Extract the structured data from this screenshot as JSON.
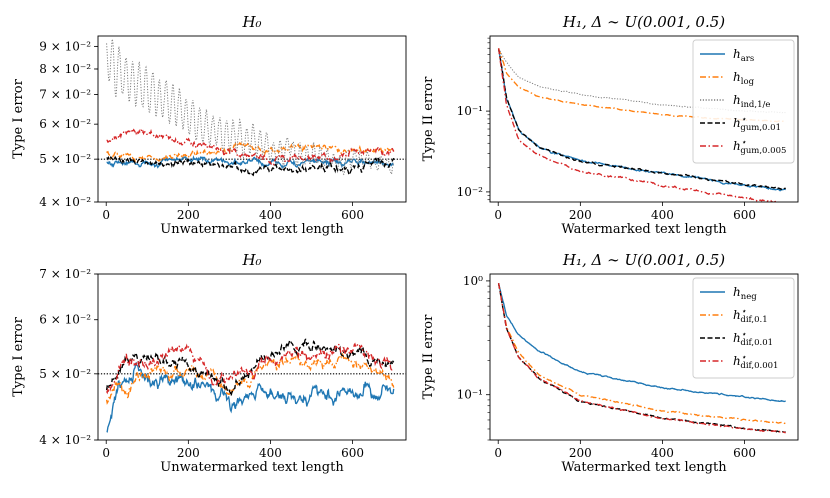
{
  "figure": {
    "panels": 4,
    "layout": "2x2"
  },
  "colors": {
    "blue": "#1f77b4",
    "orange": "#ff7f0e",
    "gray": "#7f7f7f",
    "black": "#000000",
    "red": "#d62728",
    "reference": "#000000"
  },
  "chart_data": [
    {
      "id": "top-left",
      "type": "line",
      "title": "H₀",
      "xlabel": "Unwatermarked text length",
      "ylabel": "Type I error",
      "yscale": "log",
      "xlim": [
        -20,
        730
      ],
      "ylim": [
        0.04,
        0.095
      ],
      "xticks": [
        {
          "v": 0,
          "label": "0"
        },
        {
          "v": 200,
          "label": "200"
        },
        {
          "v": 400,
          "label": "400"
        },
        {
          "v": 600,
          "label": "600"
        }
      ],
      "yticks": [
        {
          "v": 0.04,
          "label": "4 × 10⁻²"
        },
        {
          "v": 0.05,
          "label": "5 × 10⁻²"
        },
        {
          "v": 0.06,
          "label": "6 × 10⁻²"
        },
        {
          "v": 0.07,
          "label": "7 × 10⁻²"
        },
        {
          "v": 0.08,
          "label": "8 × 10⁻²"
        },
        {
          "v": 0.09,
          "label": "9 × 10⁻²"
        }
      ],
      "reference_line": {
        "y": 0.05,
        "style": "dotted"
      },
      "series": [
        {
          "name": "h_ars",
          "color": "blue",
          "dash": "solid",
          "noise": 0.012,
          "mean": [
            [
              0,
              0.049
            ],
            [
              80,
              0.049
            ],
            [
              200,
              0.05
            ],
            [
              400,
              0.049
            ],
            [
              700,
              0.049
            ]
          ]
        },
        {
          "name": "h_log",
          "color": "orange",
          "dash": "dashdot",
          "noise": 0.012,
          "mean": [
            [
              0,
              0.052
            ],
            [
              100,
              0.05
            ],
            [
              300,
              0.053
            ],
            [
              500,
              0.053
            ],
            [
              700,
              0.052
            ]
          ]
        },
        {
          "name": "h_ind,1/e",
          "color": "gray",
          "dash": "dotted",
          "noise": 0.02,
          "osc": 0.12,
          "mean": [
            [
              0,
              0.085
            ],
            [
              100,
              0.07
            ],
            [
              250,
              0.059
            ],
            [
              400,
              0.053
            ],
            [
              600,
              0.05
            ],
            [
              700,
              0.049
            ]
          ]
        },
        {
          "name": "h*_gum,0.01",
          "color": "black",
          "dash": "dashed",
          "noise": 0.014,
          "mean": [
            [
              0,
              0.05
            ],
            [
              200,
              0.049
            ],
            [
              400,
              0.047
            ],
            [
              700,
              0.049
            ]
          ]
        },
        {
          "name": "h*_gum,0.005",
          "color": "red",
          "dash": "dashdot",
          "noise": 0.014,
          "mean": [
            [
              0,
              0.055
            ],
            [
              50,
              0.058
            ],
            [
              200,
              0.054
            ],
            [
              400,
              0.05
            ],
            [
              700,
              0.052
            ]
          ]
        }
      ]
    },
    {
      "id": "top-right",
      "type": "line",
      "title": "H₁, Δ ∼ U(0.001, 0.5)",
      "xlabel": "Watermarked text length",
      "ylabel": "Type II error",
      "yscale": "log",
      "xlim": [
        -20,
        730
      ],
      "ylim": [
        0.0075,
        0.85
      ],
      "xticks": [
        {
          "v": 0,
          "label": "0"
        },
        {
          "v": 200,
          "label": "200"
        },
        {
          "v": 400,
          "label": "400"
        },
        {
          "v": 600,
          "label": "600"
        }
      ],
      "yticks": [
        {
          "v": 0.01,
          "label": "10⁻²"
        },
        {
          "v": 0.1,
          "label": "10⁻¹"
        }
      ],
      "legend": {
        "position": "upper-right",
        "entries": [
          "h_ars",
          "h_log",
          "h_ind,1/e",
          "h*_gum,0.01",
          "h*_gum,0.005"
        ]
      },
      "series": [
        {
          "name": "h_ars",
          "color": "blue",
          "dash": "solid",
          "noise": 0.02,
          "mean": [
            [
              1,
              0.6
            ],
            [
              20,
              0.15
            ],
            [
              50,
              0.06
            ],
            [
              100,
              0.035
            ],
            [
              200,
              0.024
            ],
            [
              400,
              0.017
            ],
            [
              600,
              0.012
            ],
            [
              700,
              0.0105
            ]
          ]
        },
        {
          "name": "h_log",
          "color": "orange",
          "dash": "dashdot",
          "noise": 0.01,
          "mean": [
            [
              1,
              0.6
            ],
            [
              20,
              0.3
            ],
            [
              50,
              0.2
            ],
            [
              100,
              0.15
            ],
            [
              200,
              0.12
            ],
            [
              400,
              0.09
            ],
            [
              600,
              0.078
            ],
            [
              700,
              0.074
            ]
          ]
        },
        {
          "name": "h_ind,1/e",
          "color": "gray",
          "dash": "dotted",
          "noise": 0.01,
          "mean": [
            [
              1,
              0.6
            ],
            [
              20,
              0.4
            ],
            [
              50,
              0.26
            ],
            [
              100,
              0.2
            ],
            [
              200,
              0.16
            ],
            [
              400,
              0.12
            ],
            [
              600,
              0.1
            ],
            [
              700,
              0.095
            ]
          ]
        },
        {
          "name": "h*_gum,0.01",
          "color": "black",
          "dash": "dashed",
          "noise": 0.02,
          "mean": [
            [
              1,
              0.6
            ],
            [
              20,
              0.15
            ],
            [
              50,
              0.06
            ],
            [
              100,
              0.035
            ],
            [
              200,
              0.024
            ],
            [
              400,
              0.017
            ],
            [
              600,
              0.0125
            ],
            [
              700,
              0.0108
            ]
          ]
        },
        {
          "name": "h*_gum,0.005",
          "color": "red",
          "dash": "dashdot",
          "noise": 0.02,
          "mean": [
            [
              1,
              0.6
            ],
            [
              20,
              0.12
            ],
            [
              50,
              0.045
            ],
            [
              100,
              0.028
            ],
            [
              200,
              0.018
            ],
            [
              400,
              0.012
            ],
            [
              600,
              0.0085
            ],
            [
              700,
              0.0072
            ]
          ]
        }
      ]
    },
    {
      "id": "bottom-left",
      "type": "line",
      "title": "H₀",
      "xlabel": "Unwatermarked text length",
      "ylabel": "Type I error",
      "yscale": "log",
      "xlim": [
        -20,
        730
      ],
      "ylim": [
        0.04,
        0.07
      ],
      "xticks": [
        {
          "v": 0,
          "label": "0"
        },
        {
          "v": 200,
          "label": "200"
        },
        {
          "v": 400,
          "label": "400"
        },
        {
          "v": 600,
          "label": "600"
        }
      ],
      "yticks": [
        {
          "v": 0.04,
          "label": "4 × 10⁻²"
        },
        {
          "v": 0.05,
          "label": "5 × 10⁻²"
        },
        {
          "v": 0.06,
          "label": "6 × 10⁻²"
        },
        {
          "v": 0.07,
          "label": "7 × 10⁻²"
        }
      ],
      "reference_line": {
        "y": 0.05,
        "style": "dotted"
      },
      "series": [
        {
          "name": "h_neg",
          "color": "blue",
          "dash": "solid",
          "noise": 0.018,
          "mean": [
            [
              0,
              0.041
            ],
            [
              30,
              0.048
            ],
            [
              80,
              0.05
            ],
            [
              200,
              0.049
            ],
            [
              300,
              0.046
            ],
            [
              400,
              0.047
            ],
            [
              500,
              0.046
            ],
            [
              600,
              0.047
            ],
            [
              700,
              0.048
            ]
          ]
        },
        {
          "name": "h*_dif,0.1",
          "color": "orange",
          "dash": "dashdot",
          "noise": 0.016,
          "mean": [
            [
              0,
              0.046
            ],
            [
              100,
              0.05
            ],
            [
              200,
              0.051
            ],
            [
              300,
              0.047
            ],
            [
              400,
              0.052
            ],
            [
              500,
              0.052
            ],
            [
              600,
              0.052
            ],
            [
              700,
              0.049
            ]
          ]
        },
        {
          "name": "h*_dif,0.01",
          "color": "black",
          "dash": "dashed",
          "noise": 0.014,
          "mean": [
            [
              0,
              0.047
            ],
            [
              50,
              0.053
            ],
            [
              200,
              0.052
            ],
            [
              300,
              0.048
            ],
            [
              400,
              0.054
            ],
            [
              500,
              0.055
            ],
            [
              600,
              0.054
            ],
            [
              700,
              0.051
            ]
          ]
        },
        {
          "name": "h*_dif,0.001",
          "color": "red",
          "dash": "dashdot",
          "noise": 0.016,
          "mean": [
            [
              0,
              0.047
            ],
            [
              50,
              0.052
            ],
            [
              200,
              0.054
            ],
            [
              300,
              0.048
            ],
            [
              400,
              0.052
            ],
            [
              500,
              0.053
            ],
            [
              600,
              0.055
            ],
            [
              700,
              0.051
            ]
          ]
        }
      ]
    },
    {
      "id": "bottom-right",
      "type": "line",
      "title": "H₁, Δ ∼ U(0.001, 0.5)",
      "xlabel": "Watermarked text length",
      "ylabel": "Type II error",
      "yscale": "log",
      "xlim": [
        -20,
        730
      ],
      "ylim": [
        0.04,
        1.15
      ],
      "xticks": [
        {
          "v": 0,
          "label": "0"
        },
        {
          "v": 200,
          "label": "200"
        },
        {
          "v": 400,
          "label": "400"
        },
        {
          "v": 600,
          "label": "600"
        }
      ],
      "yticks": [
        {
          "v": 0.1,
          "label": "10⁻¹"
        },
        {
          "v": 1,
          "label": "10⁰"
        }
      ],
      "legend": {
        "position": "upper-right",
        "entries": [
          "h_neg",
          "h*_dif,0.1",
          "h*_dif,0.01",
          "h*_dif,0.001"
        ]
      },
      "series": [
        {
          "name": "h_neg",
          "color": "blue",
          "dash": "solid",
          "noise": 0.01,
          "mean": [
            [
              1,
              0.95
            ],
            [
              20,
              0.5
            ],
            [
              50,
              0.33
            ],
            [
              100,
              0.24
            ],
            [
              200,
              0.16
            ],
            [
              400,
              0.115
            ],
            [
              600,
              0.095
            ],
            [
              700,
              0.088
            ]
          ]
        },
        {
          "name": "h*_dif,0.1",
          "color": "orange",
          "dash": "dashdot",
          "noise": 0.01,
          "mean": [
            [
              1,
              0.95
            ],
            [
              20,
              0.4
            ],
            [
              50,
              0.23
            ],
            [
              100,
              0.15
            ],
            [
              200,
              0.1
            ],
            [
              400,
              0.072
            ],
            [
              600,
              0.06
            ],
            [
              700,
              0.056
            ]
          ]
        },
        {
          "name": "h*_dif,0.01",
          "color": "black",
          "dash": "dashed",
          "noise": 0.01,
          "mean": [
            [
              1,
              0.95
            ],
            [
              20,
              0.38
            ],
            [
              50,
              0.21
            ],
            [
              100,
              0.14
            ],
            [
              200,
              0.088
            ],
            [
              400,
              0.062
            ],
            [
              600,
              0.051
            ],
            [
              700,
              0.047
            ]
          ]
        },
        {
          "name": "h*_dif,0.001",
          "color": "red",
          "dash": "dashdot",
          "noise": 0.01,
          "mean": [
            [
              1,
              0.95
            ],
            [
              20,
              0.38
            ],
            [
              50,
              0.21
            ],
            [
              100,
              0.14
            ],
            [
              200,
              0.088
            ],
            [
              400,
              0.062
            ],
            [
              600,
              0.05
            ],
            [
              700,
              0.047
            ]
          ]
        }
      ]
    }
  ]
}
